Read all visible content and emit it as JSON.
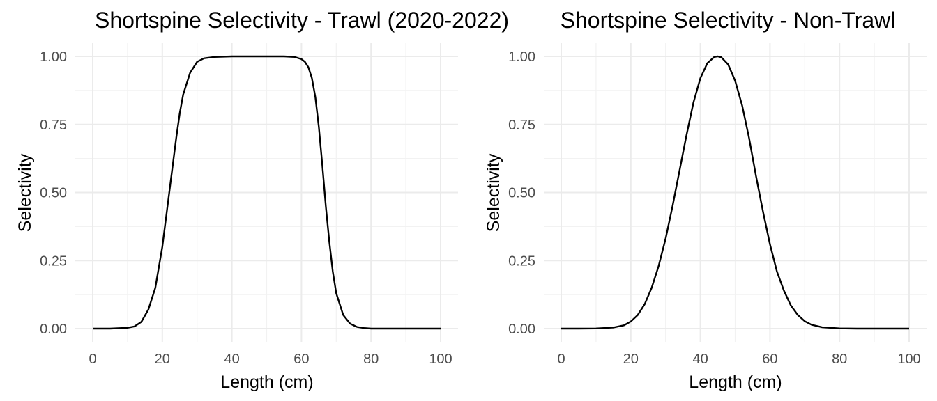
{
  "chart_data": [
    {
      "type": "line",
      "title": "Shortspine Selectivity - Trawl (2020-2022)",
      "xlabel": "Length (cm)",
      "ylabel": "Selectivity",
      "xlim": [
        0,
        100
      ],
      "ylim": [
        0,
        1
      ],
      "x_ticks": [
        "0",
        "20",
        "40",
        "60",
        "80",
        "100"
      ],
      "y_ticks": [
        "0.00",
        "0.25",
        "0.50",
        "0.75",
        "1.00"
      ],
      "grid": true,
      "series": [
        {
          "x": [
            0,
            5,
            10,
            12,
            14,
            16,
            18,
            20,
            21,
            22,
            23,
            24,
            25,
            26,
            28,
            30,
            32,
            35,
            40,
            45,
            50,
            55,
            58,
            60,
            61,
            62,
            63,
            64,
            65,
            66,
            67,
            68,
            69,
            70,
            72,
            74,
            76,
            78,
            80,
            85,
            90,
            95,
            100
          ],
          "y": [
            0.0,
            0.0,
            0.003,
            0.008,
            0.025,
            0.07,
            0.15,
            0.3,
            0.4,
            0.5,
            0.6,
            0.7,
            0.79,
            0.86,
            0.94,
            0.98,
            0.993,
            0.998,
            1.0,
            1.0,
            1.0,
            1.0,
            0.998,
            0.99,
            0.98,
            0.96,
            0.92,
            0.85,
            0.74,
            0.6,
            0.45,
            0.32,
            0.21,
            0.13,
            0.05,
            0.018,
            0.006,
            0.002,
            0.0,
            0.0,
            0.0,
            0.0,
            0.0
          ]
        }
      ]
    },
    {
      "type": "line",
      "title": "Shortspine Selectivity - Non-Trawl",
      "xlabel": "Length (cm)",
      "ylabel": "Selectivity",
      "xlim": [
        0,
        100
      ],
      "ylim": [
        0,
        1
      ],
      "x_ticks": [
        "0",
        "20",
        "40",
        "60",
        "80",
        "100"
      ],
      "y_ticks": [
        "0.00",
        "0.25",
        "0.50",
        "0.75",
        "1.00"
      ],
      "grid": true,
      "series": [
        {
          "x": [
            0,
            5,
            10,
            15,
            18,
            20,
            22,
            24,
            26,
            28,
            30,
            32,
            34,
            36,
            38,
            40,
            42,
            44,
            45,
            46,
            48,
            50,
            52,
            54,
            56,
            58,
            60,
            62,
            64,
            66,
            68,
            70,
            72,
            75,
            80,
            85,
            90,
            95,
            100
          ],
          "y": [
            0.0,
            0.0,
            0.0005,
            0.004,
            0.012,
            0.026,
            0.05,
            0.09,
            0.15,
            0.23,
            0.33,
            0.45,
            0.58,
            0.71,
            0.83,
            0.92,
            0.975,
            0.998,
            1.0,
            0.997,
            0.97,
            0.91,
            0.82,
            0.7,
            0.56,
            0.43,
            0.31,
            0.21,
            0.14,
            0.085,
            0.05,
            0.027,
            0.014,
            0.005,
            0.0008,
            0.0,
            0.0,
            0.0,
            0.0
          ]
        }
      ]
    }
  ]
}
